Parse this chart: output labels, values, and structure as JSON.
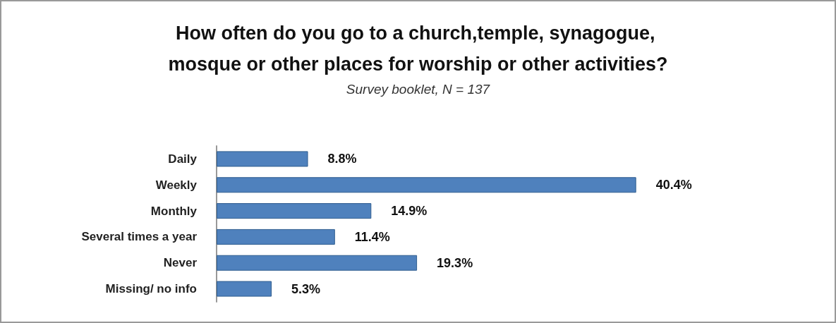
{
  "chart_data": {
    "type": "bar",
    "orientation": "horizontal",
    "title": "How often do you go to a church,temple, synagogue, mosque or other places for worship or other activities?",
    "subtitle": "Survey booklet, N = 137",
    "categories": [
      "Daily",
      "Weekly",
      "Monthly",
      "Several times a year",
      "Never",
      "Missing/ no info"
    ],
    "values": [
      8.8,
      40.4,
      14.9,
      11.4,
      19.3,
      5.3
    ],
    "value_labels": [
      "8.8%",
      "40.4%",
      "14.9%",
      "11.4%",
      "19.3%",
      "5.3%"
    ],
    "color": "#4f81bd"
  }
}
